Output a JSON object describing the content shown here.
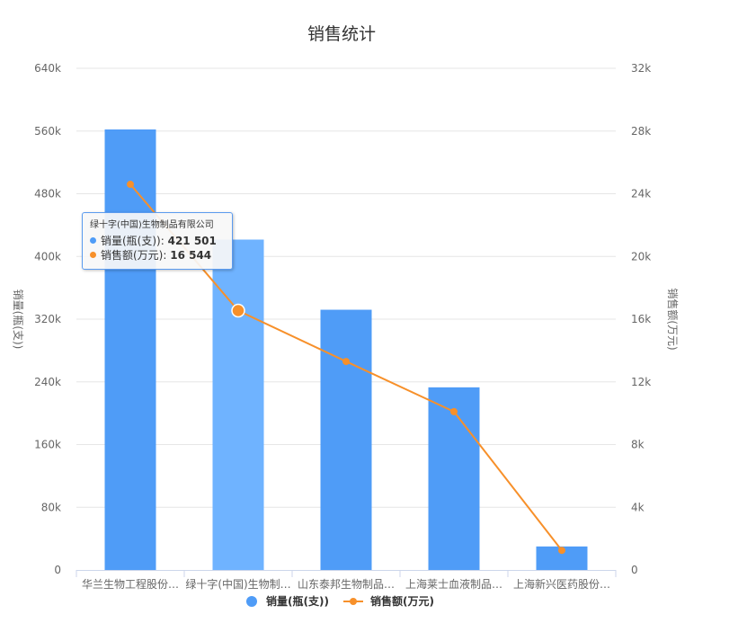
{
  "chart_data": {
    "type": "bar",
    "title": "销售统计",
    "categories": [
      "华兰生物工程股份…",
      "绿十字(中国)生物制…",
      "山东泰邦生物制品…",
      "上海莱士血液制品…",
      "上海新兴医药股份…"
    ],
    "series": [
      {
        "name": "销量(瓶(支))",
        "type": "bar",
        "axis": "left",
        "color": "#4f9cf7",
        "highlight_color": "#6fb3ff",
        "values": [
          562000,
          421501,
          332000,
          233000,
          30000
        ]
      },
      {
        "name": "销售额(万元)",
        "type": "line",
        "axis": "right",
        "color": "#f7902a",
        "values": [
          24600,
          16544,
          13300,
          10100,
          1250
        ]
      }
    ],
    "yAxisLeft": {
      "title": "销量(瓶(支))",
      "min": 0,
      "max": 640000,
      "ticks": [
        "0",
        "80k",
        "160k",
        "240k",
        "320k",
        "400k",
        "480k",
        "560k",
        "640k"
      ]
    },
    "yAxisRight": {
      "title": "销售额(万元)",
      "min": 0,
      "max": 32000,
      "ticks": [
        "0",
        "4k",
        "8k",
        "12k",
        "16k",
        "20k",
        "24k",
        "28k",
        "32k"
      ]
    },
    "grid": true,
    "legend": "bottom-center",
    "highlight_index": 1,
    "tooltip": {
      "title": "绿十字(中国)生物制品有限公司",
      "row1_label": "销量(瓶(支)): ",
      "row1_value": "421 501",
      "row2_label": "销售额(万元): ",
      "row2_value": "16 544"
    }
  }
}
